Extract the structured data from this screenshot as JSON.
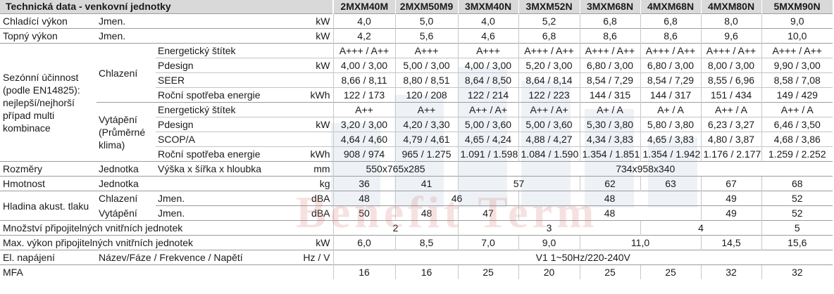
{
  "header": {
    "title": "Technická data - venkovní jednotky",
    "models": [
      "2MXM40M",
      "2MXM50M9",
      "3MXM40N",
      "3MXM52N",
      "3MXM68N",
      "4MXM68N",
      "4MXM80N",
      "5MXM90N"
    ]
  },
  "watermark": "Benefit Term",
  "rows": {
    "cool_cap": {
      "label": "Chladící výkon",
      "sub": "Jmen.",
      "unit": "kW",
      "values": [
        "4,0",
        "5,0",
        "4,0",
        "5,2",
        "6,8",
        "6,8",
        "8,0",
        "9,0"
      ]
    },
    "heat_cap": {
      "label": "Topný výkon",
      "sub": "Jmen.",
      "unit": "kW",
      "values": [
        "4,2",
        "5,6",
        "4,6",
        "6,8",
        "8,6",
        "8,6",
        "9,6",
        "10,0"
      ]
    },
    "seasonal": {
      "label": "Sezónní účinnost (podle EN14825): nejlepší/nejhorší případ multi kombinace",
      "cooling": {
        "label": "Chlazení",
        "rows": [
          {
            "label": "Energetický štítek",
            "unit": "",
            "values": [
              "A+++ / A++",
              "A+++",
              "A+++",
              "A+++ / A++",
              "A+++ / A++",
              "A+++ / A++",
              "A+++ / A++",
              "A+++ / A++"
            ]
          },
          {
            "label": "Pdesign",
            "unit": "kW",
            "values": [
              "4,00 / 3,00",
              "5,00 / 3,00",
              "4,00 / 3,00",
              "5,20 / 3,00",
              "6,80 / 3,00",
              "6,80 / 3,00",
              "8,00 / 3,00",
              "9,90 / 3,00"
            ]
          },
          {
            "label": "SEER",
            "unit": "",
            "values": [
              "8,66 / 8,11",
              "8,80 / 8,51",
              "8,64 / 8,50",
              "8,64 / 8,14",
              "8,54 / 7,29",
              "8,54 / 7,29",
              "8,55 / 6,96",
              "8,58 / 7,08"
            ]
          },
          {
            "label": "Roční spotřeba energie",
            "unit": "kWh",
            "values": [
              "122 / 173",
              "120 / 208",
              "122 / 214",
              "122 / 223",
              "144 / 315",
              "144 / 317",
              "151 / 434",
              "149 / 429"
            ]
          }
        ]
      },
      "heating": {
        "label": "Vytápění (Průměrné klima)",
        "rows": [
          {
            "label": "Energetický štítek",
            "unit": "",
            "values": [
              "A++",
              "A++",
              "A++ / A+",
              "A++ / A+",
              "A+ / A",
              "A+ / A",
              "A++ / A",
              "A++ / A"
            ]
          },
          {
            "label": "Pdesign",
            "unit": "kW",
            "values": [
              "3,20 / 3,00",
              "4,20 / 3,30",
              "5,00 / 3,60",
              "5,00 / 3,60",
              "5,30 / 3,80",
              "5,80 / 3,80",
              "6,23 / 3,27",
              "6,46 / 3,50"
            ]
          },
          {
            "label": "SCOP/A",
            "unit": "",
            "values": [
              "4,64 / 4,60",
              "4,79 / 4,61",
              "4,65 / 4,24",
              "4,88 / 4,27",
              "4,34 / 3,83",
              "4,65 / 3,83",
              "4,80 / 3,87",
              "4,68 / 3,86"
            ]
          },
          {
            "label": "Roční spotřeba energie",
            "unit": "kWh",
            "values": [
              "908 / 974",
              "965 / 1.275",
              "1.091 / 1.598",
              "1.084 / 1.590",
              "1.354 / 1.851",
              "1.354 / 1.942",
              "1.176 / 2.177",
              "1.259 / 2.252"
            ]
          }
        ]
      }
    },
    "dims": {
      "label": "Rozměry",
      "sub": "Jednotka",
      "sub2": "Výška x šířka x hloubka",
      "unit": "mm",
      "v1": "550x765x285",
      "v2": "734x958x340"
    },
    "weight": {
      "label": "Hmotnost",
      "sub": "Jednotka",
      "unit": "kg",
      "values": [
        "36",
        "41",
        "57",
        "62",
        "63",
        "67",
        "68"
      ]
    },
    "noise": {
      "label": "Hladina akust. tlaku",
      "cool": {
        "sub": "Chlazení",
        "sub2": "Jmen.",
        "unit": "dBA",
        "values": [
          "48",
          "46",
          "48",
          "49",
          "52"
        ]
      },
      "heat": {
        "sub": "Vytápění",
        "sub2": "Jmen.",
        "unit": "dBA",
        "values": [
          "50",
          "48",
          "47",
          "48",
          "49",
          "52"
        ]
      }
    },
    "indoor_count": {
      "label": "Množství připojitelných vnitřních jednotek",
      "values": [
        "2",
        "3",
        "4",
        "5"
      ]
    },
    "max_power": {
      "label": "Max. výkon připojitelných vnitřních jednotek",
      "unit": "kW",
      "values": [
        "6,0",
        "8,5",
        "7,0",
        "9,0",
        "11,0",
        "14,5",
        "15,6"
      ]
    },
    "power_supply": {
      "label": "El. napájení",
      "sub": "Název/Fáze / Frekvence / Napětí",
      "unit": "Hz / V",
      "value": "V1 1~50Hz/220-240V"
    },
    "mfa": {
      "label": "MFA",
      "values": [
        "16",
        "16",
        "25",
        "20",
        "25",
        "25",
        "32",
        "32"
      ]
    }
  }
}
